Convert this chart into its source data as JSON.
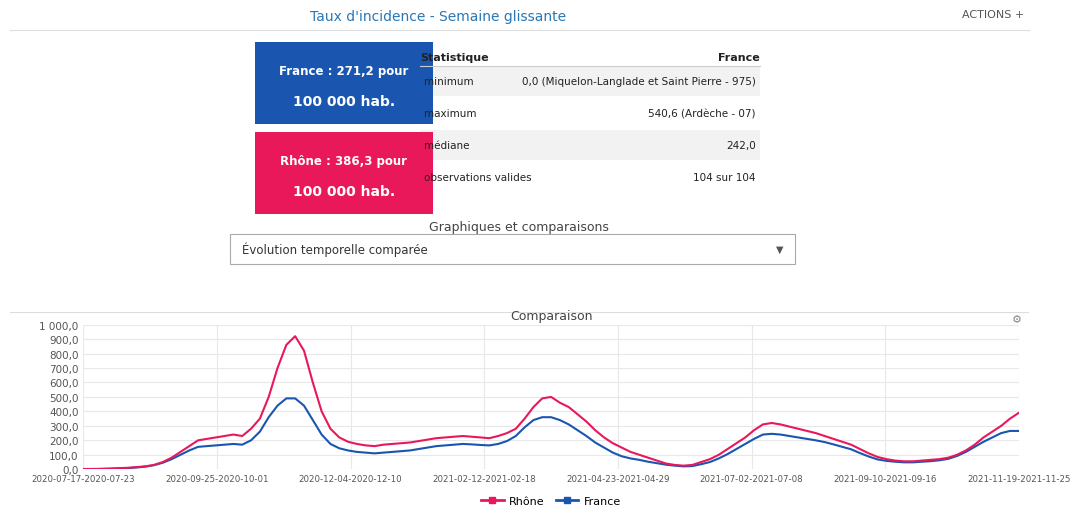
{
  "title_main": "Taux d'incidence - Semaine glissante",
  "actions_text": "ACTIONS +",
  "france_box_text1": "France : 271,2 pour",
  "france_box_text2": "100 000 hab.",
  "rhone_box_text1": "Rhône : 386,3 pour",
  "rhone_box_text2": "100 000 hab.",
  "stat_title": "Statistique",
  "stat_france": "France",
  "stat_rows": [
    [
      "minimum",
      "0,0 (Miquelon-Langlade et Saint Pierre - 975)"
    ],
    [
      "maximum",
      "540,6 (Ardèche - 07)"
    ],
    [
      "médiane",
      "242,0"
    ],
    [
      "observations valides",
      "104 sur 104"
    ]
  ],
  "section_title": "Graphiques et comparaisons",
  "dropdown_text": "Évolution temporelle comparée",
  "chart_title": "Comparaison",
  "ylim": [
    0,
    1000
  ],
  "yticks": [
    0,
    100,
    200,
    300,
    400,
    500,
    600,
    700,
    800,
    900,
    1000
  ],
  "ytick_labels": [
    "0,0",
    "100,0",
    "200,0",
    "300,0",
    "400,0",
    "500,0",
    "600,0",
    "700,0",
    "800,0",
    "900,0",
    "1 000,0"
  ],
  "xtick_labels": [
    "2020-07-17-2020-07-23",
    "2020-09-25-2020-10-01",
    "2020-12-04-2020-12-10",
    "2021-02-12-2021-02-18",
    "2021-04-23-2021-04-29",
    "2021-07-02-2021-07-08",
    "2021-09-10-2021-09-16",
    "2021-11-19-2021-11-25"
  ],
  "rhone_color": "#e8185a",
  "france_color": "#1a56b0",
  "france_box_color": "#1a56b0",
  "rhone_box_color": "#e8185a",
  "legend_rhone": "Rhône",
  "legend_france": "France",
  "rhone_data": [
    2,
    2,
    3,
    5,
    8,
    10,
    15,
    20,
    30,
    50,
    80,
    120,
    160,
    200,
    210,
    220,
    230,
    240,
    230,
    280,
    350,
    500,
    700,
    860,
    920,
    820,
    600,
    400,
    280,
    220,
    190,
    175,
    165,
    160,
    170,
    175,
    180,
    185,
    195,
    205,
    215,
    220,
    225,
    230,
    225,
    220,
    215,
    230,
    250,
    280,
    350,
    430,
    490,
    500,
    460,
    430,
    380,
    330,
    270,
    220,
    180,
    150,
    120,
    100,
    80,
    60,
    40,
    30,
    25,
    30,
    50,
    70,
    100,
    140,
    180,
    220,
    270,
    310,
    320,
    310,
    295,
    280,
    265,
    250,
    230,
    210,
    190,
    170,
    140,
    110,
    85,
    70,
    60,
    55,
    55,
    60,
    65,
    70,
    80,
    100,
    130,
    170,
    220,
    260,
    300,
    350,
    390
  ],
  "france_data": [
    1,
    1,
    2,
    3,
    5,
    8,
    12,
    18,
    28,
    45,
    70,
    100,
    130,
    155,
    160,
    165,
    170,
    175,
    170,
    200,
    260,
    360,
    440,
    490,
    490,
    440,
    340,
    240,
    175,
    145,
    130,
    120,
    115,
    110,
    115,
    120,
    125,
    130,
    140,
    150,
    160,
    165,
    170,
    175,
    172,
    168,
    165,
    175,
    195,
    230,
    290,
    340,
    360,
    360,
    340,
    310,
    270,
    230,
    185,
    150,
    115,
    90,
    75,
    65,
    52,
    42,
    32,
    25,
    20,
    22,
    35,
    50,
    75,
    105,
    140,
    175,
    210,
    240,
    245,
    240,
    230,
    220,
    210,
    200,
    188,
    172,
    155,
    138,
    112,
    88,
    68,
    58,
    52,
    48,
    48,
    52,
    56,
    62,
    72,
    92,
    120,
    155,
    190,
    220,
    250,
    265,
    265
  ]
}
